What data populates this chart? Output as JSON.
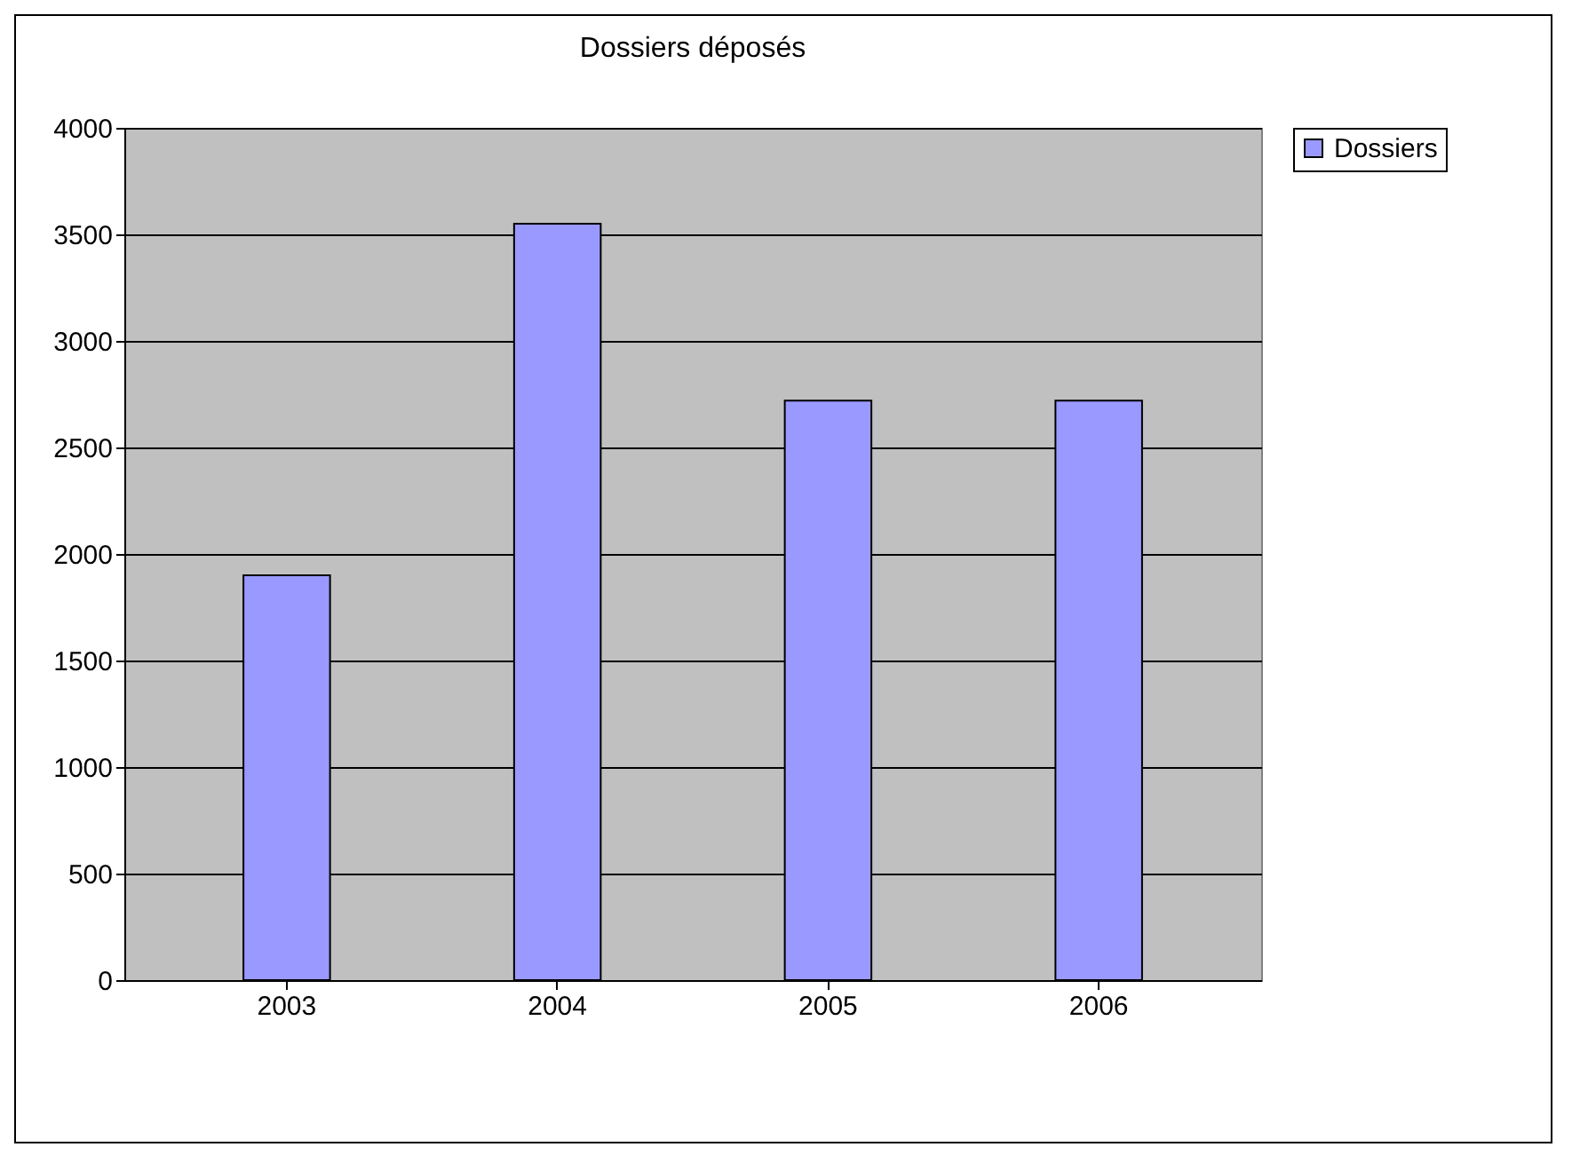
{
  "chart_data": {
    "type": "bar",
    "title": "Dossiers déposés",
    "categories": [
      "2003",
      "2004",
      "2005",
      "2006"
    ],
    "series": [
      {
        "name": "Dossiers",
        "color": "#9999ff",
        "values": [
          1900,
          3550,
          2720,
          2720
        ]
      }
    ],
    "ylim": [
      0,
      4000
    ],
    "yticks": [
      0,
      500,
      1000,
      1500,
      2000,
      2500,
      3000,
      3500,
      4000
    ],
    "grid": "y",
    "legend": "right"
  }
}
